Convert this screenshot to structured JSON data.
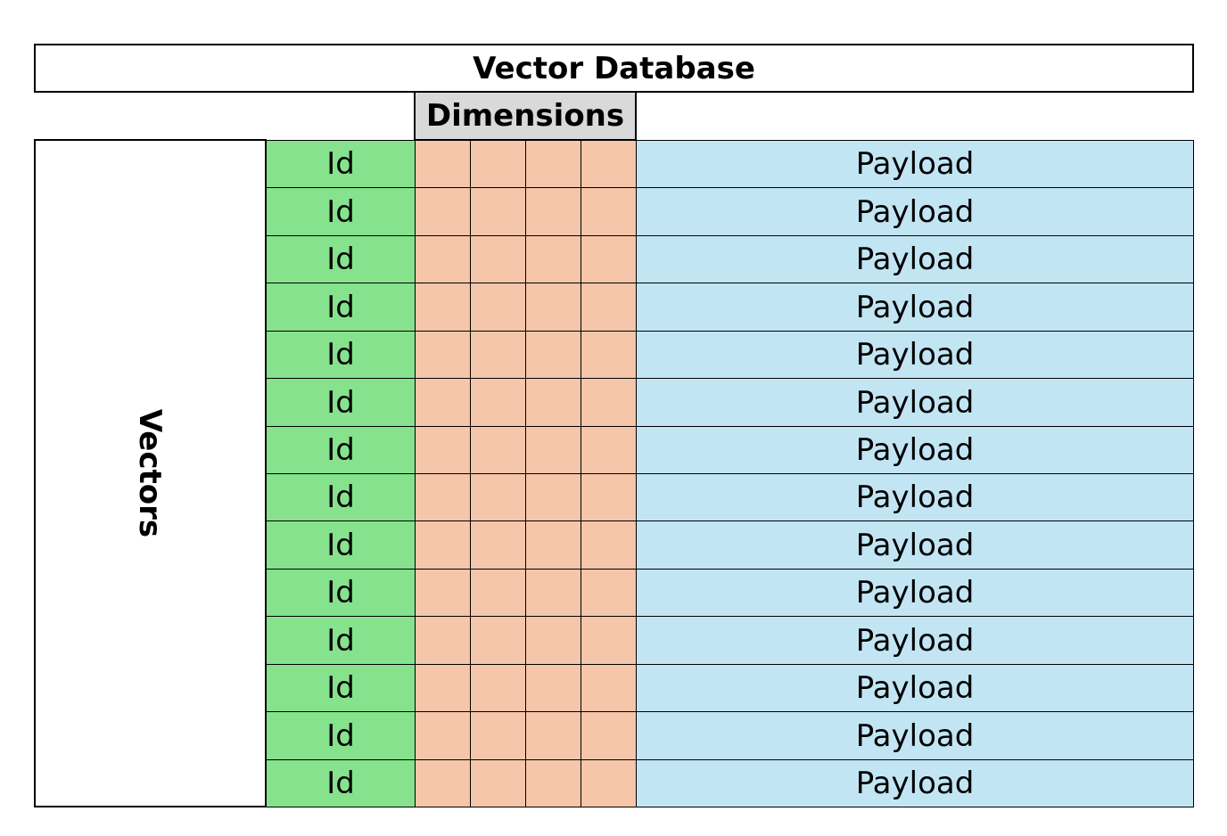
{
  "title": "Vector Database",
  "dimensions_header": "Dimensions",
  "vectors_label": "Vectors",
  "dimension_count": 4,
  "rows": [
    {
      "id": "Id",
      "payload": "Payload"
    },
    {
      "id": "Id",
      "payload": "Payload"
    },
    {
      "id": "Id",
      "payload": "Payload"
    },
    {
      "id": "Id",
      "payload": "Payload"
    },
    {
      "id": "Id",
      "payload": "Payload"
    },
    {
      "id": "Id",
      "payload": "Payload"
    },
    {
      "id": "Id",
      "payload": "Payload"
    },
    {
      "id": "Id",
      "payload": "Payload"
    },
    {
      "id": "Id",
      "payload": "Payload"
    },
    {
      "id": "Id",
      "payload": "Payload"
    },
    {
      "id": "Id",
      "payload": "Payload"
    },
    {
      "id": "Id",
      "payload": "Payload"
    },
    {
      "id": "Id",
      "payload": "Payload"
    },
    {
      "id": "Id",
      "payload": "Payload"
    }
  ],
  "colors": {
    "id": "#86e28c",
    "dimension": "#f5c6aa",
    "payload": "#c2e5f4",
    "header": "#d9d9d9"
  }
}
